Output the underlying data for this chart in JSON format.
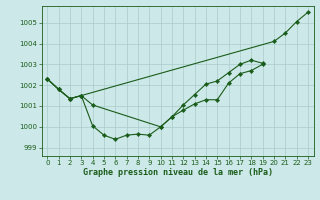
{
  "bg_color": "#cce8e8",
  "grid_color": "#aacccc",
  "line_color": "#1a5c1a",
  "xlim": [
    -0.5,
    23.5
  ],
  "ylim": [
    998.6,
    1005.8
  ],
  "yticks": [
    999,
    1000,
    1001,
    1002,
    1003,
    1004,
    1005
  ],
  "xticks": [
    0,
    1,
    2,
    3,
    4,
    5,
    6,
    7,
    8,
    9,
    10,
    11,
    12,
    13,
    14,
    15,
    16,
    17,
    18,
    19,
    20,
    21,
    22,
    23
  ],
  "xlabel": "Graphe pression niveau de la mer (hPa)",
  "series1_x": [
    0,
    1,
    2,
    3,
    4,
    5,
    6,
    7,
    8,
    9,
    10,
    11,
    12,
    13,
    14,
    15,
    16,
    17,
    18,
    19
  ],
  "series1_y": [
    1002.3,
    1001.8,
    1001.35,
    1001.5,
    1000.05,
    999.6,
    999.4,
    999.6,
    999.65,
    999.6,
    1000.0,
    1000.48,
    1000.8,
    1001.1,
    1001.3,
    1001.3,
    1002.1,
    1002.55,
    1002.7,
    1003.0
  ],
  "series2_x": [
    0,
    1,
    2,
    3,
    4,
    10,
    11,
    12,
    13,
    14,
    15,
    16,
    17,
    18,
    19
  ],
  "series2_y": [
    1002.3,
    1001.8,
    1001.35,
    1001.5,
    1001.05,
    1000.0,
    1000.48,
    1001.05,
    1001.55,
    1002.05,
    1002.2,
    1002.6,
    1003.0,
    1003.2,
    1003.05
  ],
  "series3_x": [
    0,
    1,
    2,
    3,
    20,
    21,
    22,
    23
  ],
  "series3_y": [
    1002.3,
    1001.8,
    1001.35,
    1001.5,
    1004.1,
    1004.5,
    1005.05,
    1005.5
  ]
}
